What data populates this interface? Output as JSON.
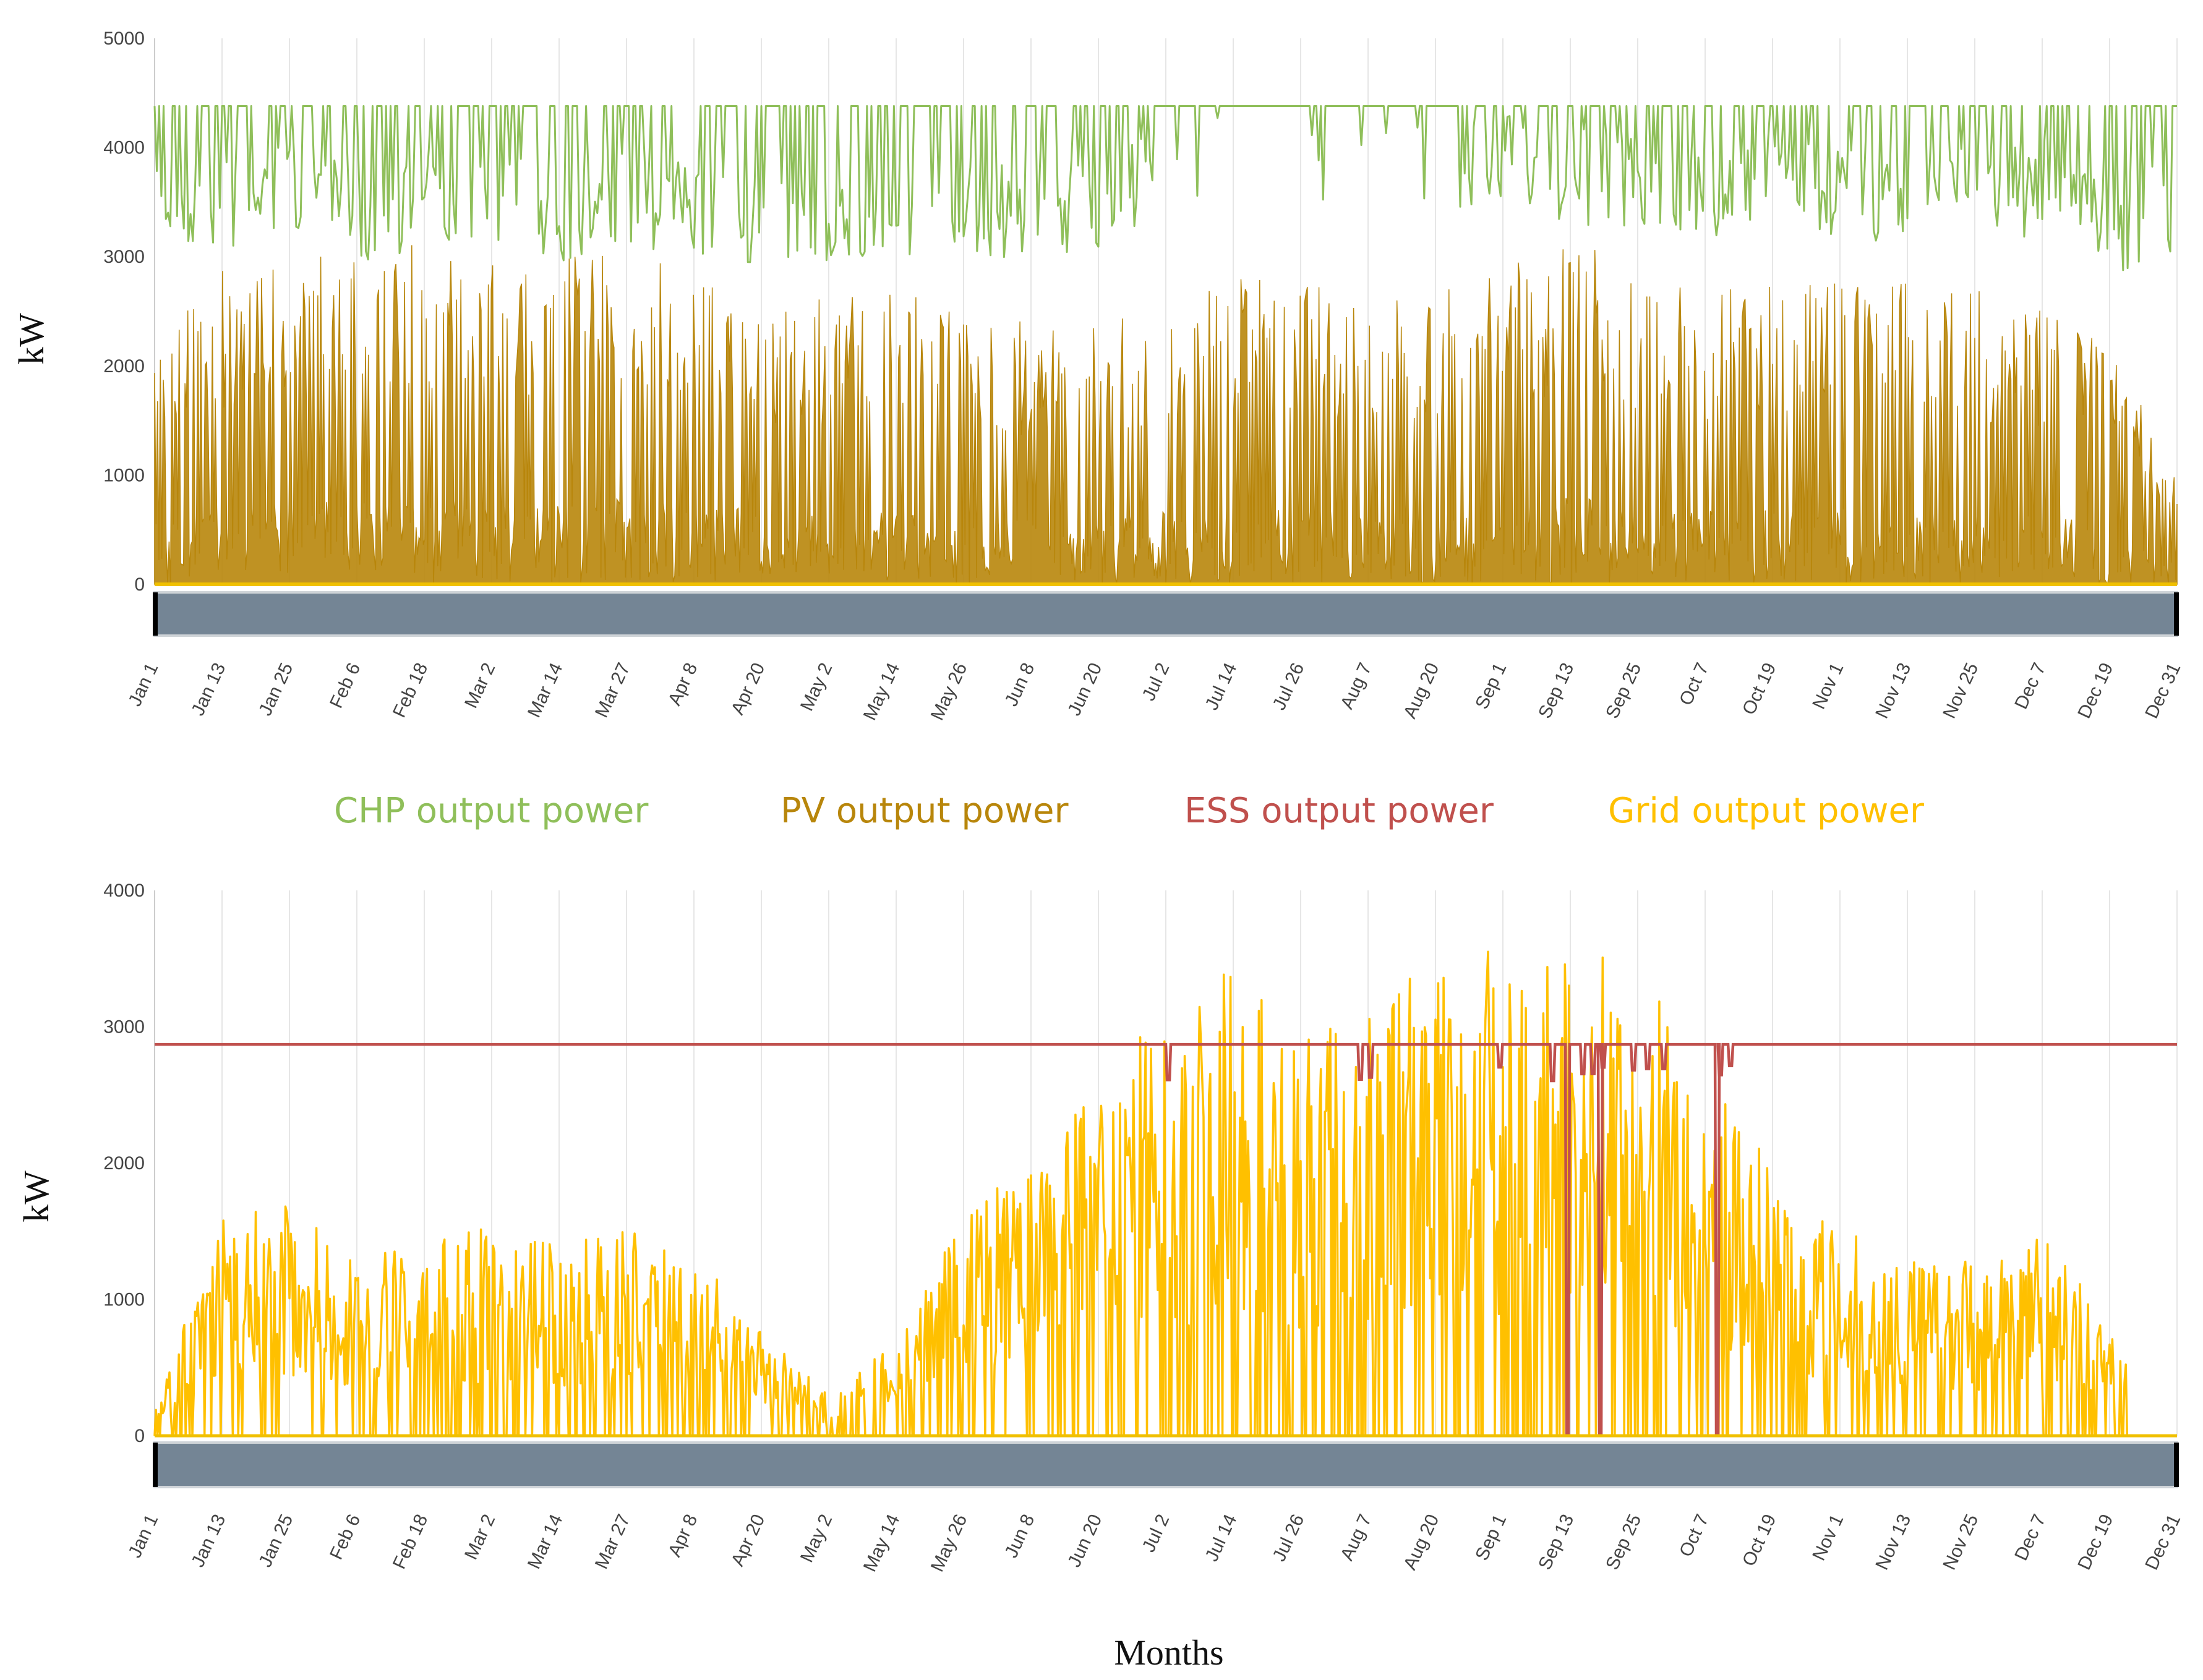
{
  "chart_data": [
    {
      "type": "line",
      "ylabel": "kW",
      "ylim": [
        0,
        5000
      ],
      "yticks": [
        "0",
        "1000",
        "2000",
        "3000",
        "4000",
        "5000"
      ],
      "categories": [
        "Jan 1",
        "Jan 13",
        "Jan 25",
        "Feb 6",
        "Feb 18",
        "Mar 2",
        "Mar 14",
        "Mar 27",
        "Apr 8",
        "Apr 20",
        "May 2",
        "May 14",
        "May 26",
        "Jun 8",
        "Jun 20",
        "Jul 2",
        "Jul 14",
        "Jul 26",
        "Aug 7",
        "Aug 20",
        "Sep 1",
        "Sep 13",
        "Sep 25",
        "Oct 7",
        "Oct 19",
        "Nov 1",
        "Nov 13",
        "Nov 25",
        "Dec 7",
        "Dec 19",
        "Dec 31"
      ],
      "series": [
        {
          "name": "CHP output power",
          "color": "#8fbf5a",
          "max": 4380,
          "values": [
            4050,
            3900,
            4100,
            3800,
            4000,
            4050,
            3850,
            3950,
            3900,
            3800,
            3750,
            3800,
            3850,
            3900,
            3950,
            4380,
            4380,
            4350,
            4380,
            4350,
            4300,
            4200,
            4100,
            4000,
            4100,
            4050,
            3950,
            4000,
            4100,
            3700,
            3900
          ]
        },
        {
          "name": "PV output power",
          "color": "#b8860b",
          "max": 3300,
          "values": [
            2200,
            2900,
            3100,
            3000,
            3200,
            3000,
            3100,
            3200,
            3000,
            2700,
            2600,
            2700,
            2500,
            2400,
            2400,
            2700,
            2800,
            2800,
            2700,
            2700,
            2900,
            3250,
            2800,
            2700,
            2750,
            2800,
            2800,
            2700,
            2500,
            2200,
            1000
          ]
        }
      ]
    },
    {
      "type": "line",
      "ylabel": "kW",
      "xlabel": "Months",
      "ylim": [
        0,
        4000
      ],
      "yticks": [
        "0",
        "1000",
        "2000",
        "3000",
        "4000"
      ],
      "categories": [
        "Jan 1",
        "Jan 13",
        "Jan 25",
        "Feb 6",
        "Feb 18",
        "Mar 2",
        "Mar 14",
        "Mar 27",
        "Apr 8",
        "Apr 20",
        "May 2",
        "May 14",
        "May 26",
        "Jun 8",
        "Jun 20",
        "Jul 2",
        "Jul 14",
        "Jul 26",
        "Aug 7",
        "Aug 20",
        "Sep 1",
        "Sep 13",
        "Sep 25",
        "Oct 7",
        "Oct 19",
        "Nov 1",
        "Nov 13",
        "Nov 25",
        "Dec 7",
        "Dec 19",
        "Dec 31"
      ],
      "series": [
        {
          "name": "ESS output power",
          "color": "#c0504d",
          "level": 2870,
          "dips": [
            {
              "at": "Sep 13",
              "to": 0
            },
            {
              "at": "Sep 25",
              "to": 0
            }
          ]
        },
        {
          "name": "Grid output power",
          "color": "#ffc000",
          "values": [
            200,
            1650,
            1700,
            1300,
            1400,
            1550,
            1400,
            1550,
            1350,
            800,
            300,
            700,
            1700,
            1950,
            2900,
            3000,
            3500,
            3000,
            3300,
            3550,
            3550,
            3550,
            3550,
            2650,
            2000,
            1500,
            1400,
            1300,
            1550,
            800,
            0
          ]
        }
      ]
    }
  ],
  "legend": [
    {
      "label": "CHP output power",
      "color": "#8fbf5a"
    },
    {
      "label": "PV output power",
      "color": "#b8860b"
    },
    {
      "label": "ESS output power",
      "color": "#c0504d"
    },
    {
      "label": "Grid output power",
      "color": "#ffc000"
    }
  ]
}
